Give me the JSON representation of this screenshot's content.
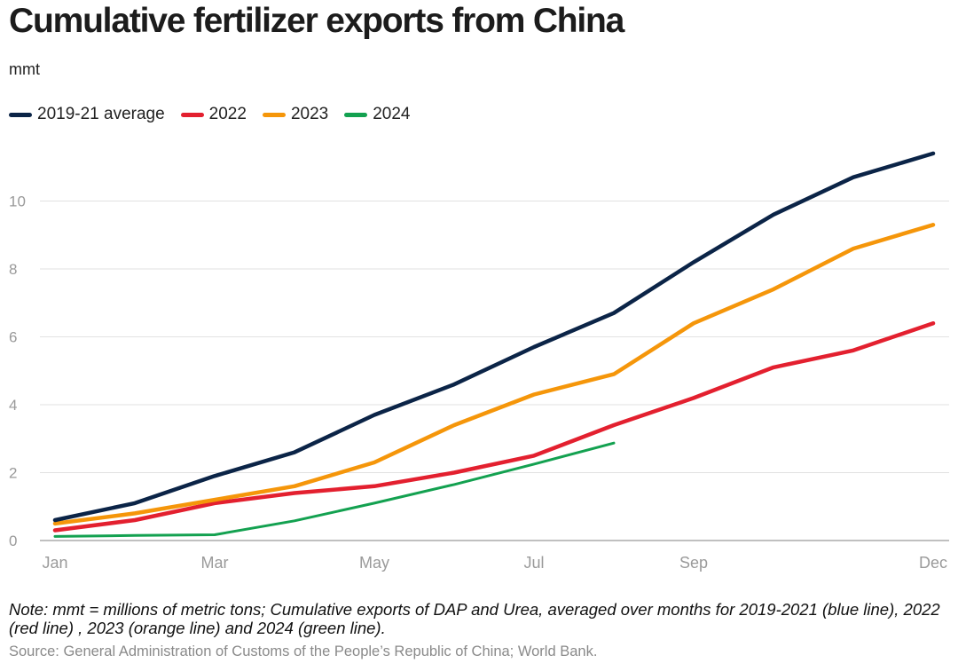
{
  "title": "Cumulative fertilizer exports from China",
  "unit": "mmt",
  "note": "Note: mmt = millions of metric tons; Cumulative exports of DAP and Urea, averaged over months for 2019-2021 (blue line), 2022 (red line) , 2023 (orange line) and 2024 (green line).",
  "source": "Source: General Administration of Customs of the People’s Republic of China; World Bank.",
  "chart_data": {
    "type": "line",
    "x": [
      1,
      2,
      3,
      4,
      5,
      6,
      7,
      8,
      9,
      10,
      11,
      12
    ],
    "xticks": [
      {
        "x": 1,
        "label": "Jan"
      },
      {
        "x": 3,
        "label": "Mar"
      },
      {
        "x": 5,
        "label": "May"
      },
      {
        "x": 7,
        "label": "Jul"
      },
      {
        "x": 9,
        "label": "Sep"
      },
      {
        "x": 12,
        "label": "Dec"
      }
    ],
    "xlim": [
      1,
      12
    ],
    "ylim": [
      0,
      12
    ],
    "yticks": [
      0,
      2,
      4,
      6,
      8,
      10
    ],
    "grid": "horizontal",
    "legend_position": "top-left",
    "series": [
      {
        "name": "2019-21 average",
        "color": "#0b2447",
        "values": [
          0.6,
          1.1,
          1.9,
          2.6,
          3.7,
          4.6,
          5.7,
          6.7,
          8.2,
          9.6,
          10.7,
          11.4
        ]
      },
      {
        "name": "2022",
        "color": "#e3202f",
        "values": [
          0.3,
          0.6,
          1.1,
          1.4,
          1.6,
          2.0,
          2.5,
          3.4,
          4.2,
          5.1,
          5.6,
          6.4
        ]
      },
      {
        "name": "2023",
        "color": "#f5960a",
        "values": [
          0.5,
          0.8,
          1.2,
          1.6,
          2.3,
          3.4,
          4.3,
          4.9,
          6.4,
          7.4,
          8.6,
          9.3
        ]
      },
      {
        "name": "2024",
        "color": "#13a150",
        "values": [
          0.12,
          0.15,
          0.17,
          0.58,
          1.1,
          1.65,
          2.25,
          2.87,
          null,
          null,
          null,
          null
        ]
      }
    ]
  }
}
